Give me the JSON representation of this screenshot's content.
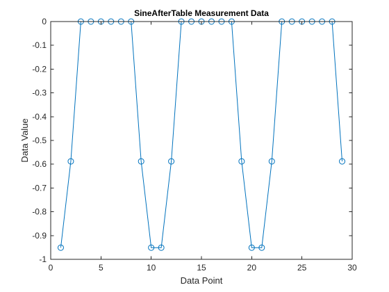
{
  "chart_data": {
    "type": "line",
    "title": "SineAfterTable Measurement Data",
    "xlabel": "Data Point",
    "ylabel": "Data Value",
    "xlim": [
      0,
      30
    ],
    "ylim": [
      -1,
      0
    ],
    "xticks": [
      0,
      5,
      10,
      15,
      20,
      25,
      30
    ],
    "xtick_labels": [
      "0",
      "5",
      "10",
      "15",
      "20",
      "25",
      "30"
    ],
    "yticks": [
      0,
      -0.1,
      -0.2,
      -0.3,
      -0.4,
      -0.5,
      -0.6,
      -0.7,
      -0.8,
      -0.9,
      -1
    ],
    "ytick_labels": [
      "0",
      "-0.1",
      "-0.2",
      "-0.3",
      "-0.4",
      "-0.5",
      "-0.6",
      "-0.7",
      "-0.8",
      "-0.9",
      "-1"
    ],
    "grid": false,
    "marker": "circle",
    "series": [
      {
        "color": "#0072BD",
        "x": [
          1,
          2,
          3,
          4,
          5,
          6,
          7,
          8,
          9,
          10,
          11,
          12,
          13,
          14,
          15,
          16,
          17,
          18,
          19,
          20,
          21,
          22,
          23,
          24,
          25,
          26,
          27,
          28,
          29
        ],
        "y": [
          -0.951,
          -0.588,
          0,
          0,
          0,
          0,
          0,
          0,
          -0.588,
          -0.951,
          -0.951,
          -0.588,
          0,
          0,
          0,
          0,
          0,
          0,
          -0.588,
          -0.951,
          -0.951,
          -0.588,
          0,
          0,
          0,
          0,
          0,
          0,
          -0.588
        ]
      }
    ]
  }
}
